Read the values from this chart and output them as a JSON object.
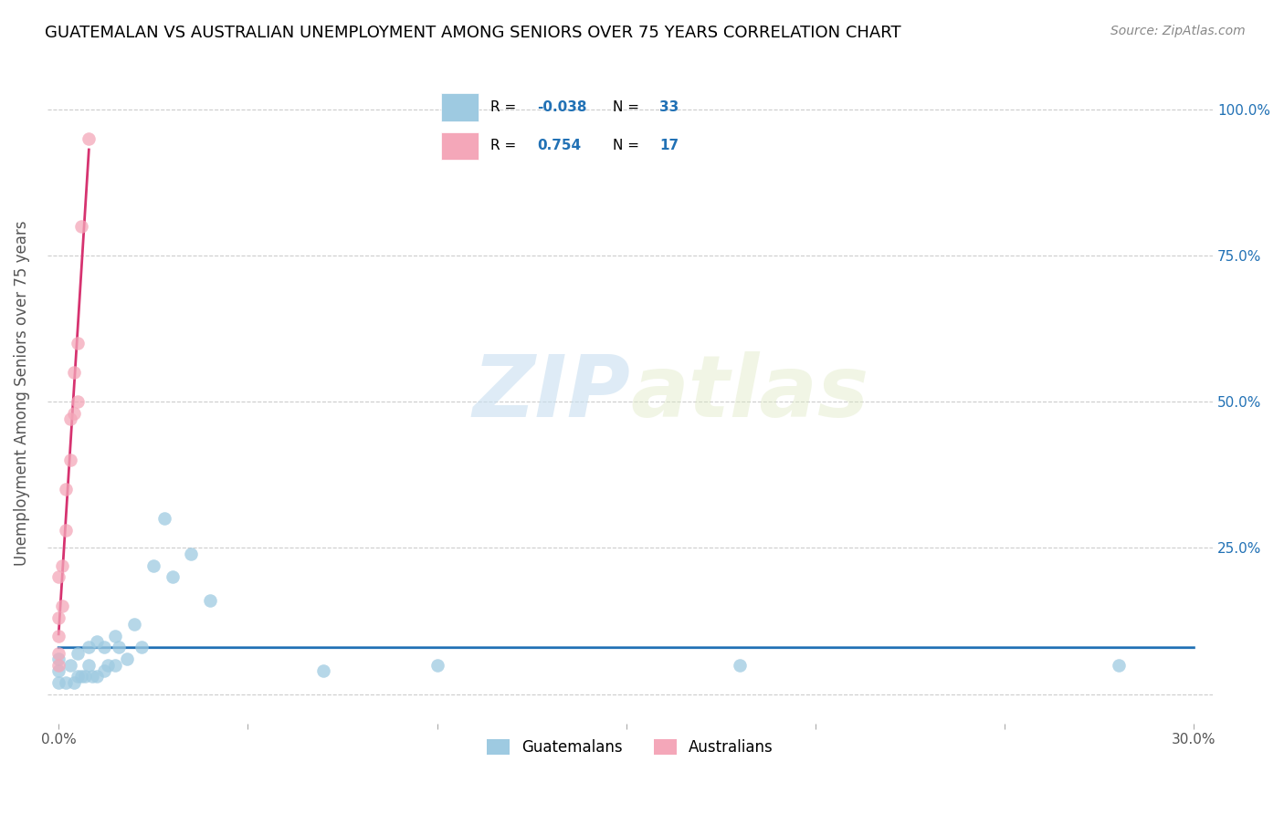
{
  "title": "GUATEMALAN VS AUSTRALIAN UNEMPLOYMENT AMONG SENIORS OVER 75 YEARS CORRELATION CHART",
  "source": "Source: ZipAtlas.com",
  "ylabel": "Unemployment Among Seniors over 75 years",
  "xlim": [
    -0.003,
    0.305
  ],
  "ylim": [
    -0.05,
    1.08
  ],
  "xtick_vals": [
    0.0,
    0.05,
    0.1,
    0.15,
    0.2,
    0.25,
    0.3
  ],
  "xtick_labels": [
    "0.0%",
    "",
    "",
    "",
    "",
    "",
    "30.0%"
  ],
  "ytick_vals": [
    0.0,
    0.25,
    0.5,
    0.75,
    1.0
  ],
  "ytick_labels_right": [
    "",
    "25.0%",
    "50.0%",
    "75.0%",
    "100.0%"
  ],
  "guatemalan_color": "#9ecae1",
  "australian_color": "#f4a7b9",
  "trend_guatemalan_color": "#2171b5",
  "trend_australian_color": "#d63370",
  "legend_R_guatemalan": "-0.038",
  "legend_N_guatemalan": "33",
  "legend_R_australian": "0.754",
  "legend_N_australian": "17",
  "guatemalan_x": [
    0.0,
    0.0,
    0.0,
    0.002,
    0.003,
    0.004,
    0.005,
    0.005,
    0.006,
    0.007,
    0.008,
    0.008,
    0.009,
    0.01,
    0.01,
    0.012,
    0.012,
    0.013,
    0.015,
    0.015,
    0.016,
    0.018,
    0.02,
    0.022,
    0.025,
    0.028,
    0.03,
    0.035,
    0.04,
    0.07,
    0.1,
    0.18,
    0.28
  ],
  "guatemalan_y": [
    0.02,
    0.04,
    0.06,
    0.02,
    0.05,
    0.02,
    0.03,
    0.07,
    0.03,
    0.03,
    0.05,
    0.08,
    0.03,
    0.03,
    0.09,
    0.04,
    0.08,
    0.05,
    0.05,
    0.1,
    0.08,
    0.06,
    0.12,
    0.08,
    0.22,
    0.3,
    0.2,
    0.24,
    0.16,
    0.04,
    0.05,
    0.05,
    0.05
  ],
  "australian_x": [
    0.0,
    0.0,
    0.0,
    0.0,
    0.0,
    0.001,
    0.001,
    0.002,
    0.002,
    0.003,
    0.003,
    0.004,
    0.004,
    0.005,
    0.005,
    0.006,
    0.008
  ],
  "australian_y": [
    0.05,
    0.07,
    0.1,
    0.13,
    0.2,
    0.15,
    0.22,
    0.28,
    0.35,
    0.4,
    0.47,
    0.48,
    0.55,
    0.5,
    0.6,
    0.8,
    0.95
  ]
}
